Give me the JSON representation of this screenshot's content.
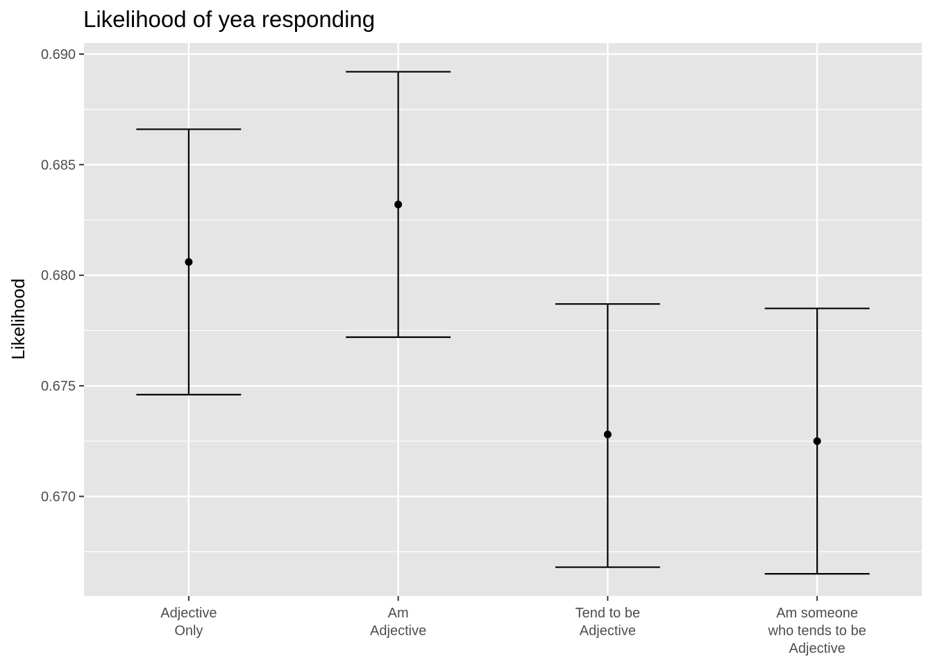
{
  "chart_data": {
    "type": "errorbar",
    "title": "Likelihood of yea responding",
    "xlabel": "",
    "ylabel": "Likelihood",
    "ylim": [
      0.6655,
      0.6905
    ],
    "yticks": [
      0.67,
      0.675,
      0.68,
      0.685,
      0.69
    ],
    "ytick_labels": [
      "0.670",
      "0.675",
      "0.680",
      "0.685",
      "0.690"
    ],
    "categories": [
      [
        "Adjective",
        "Only"
      ],
      [
        "Am",
        "Adjective"
      ],
      [
        "Tend to be",
        "Adjective"
      ],
      [
        "Am someone",
        "who tends to be",
        "Adjective"
      ]
    ],
    "points": [
      {
        "estimate": 0.6806,
        "lower": 0.6746,
        "upper": 0.6866
      },
      {
        "estimate": 0.6832,
        "lower": 0.6772,
        "upper": 0.6892
      },
      {
        "estimate": 0.6728,
        "lower": 0.6668,
        "upper": 0.6787
      },
      {
        "estimate": 0.6725,
        "lower": 0.6665,
        "upper": 0.6785
      }
    ],
    "grid": true,
    "colors": {
      "panel": "#e5e5e5",
      "grid": "#ffffff",
      "marks": "#000000",
      "ticks": "#4d4d4d"
    }
  }
}
